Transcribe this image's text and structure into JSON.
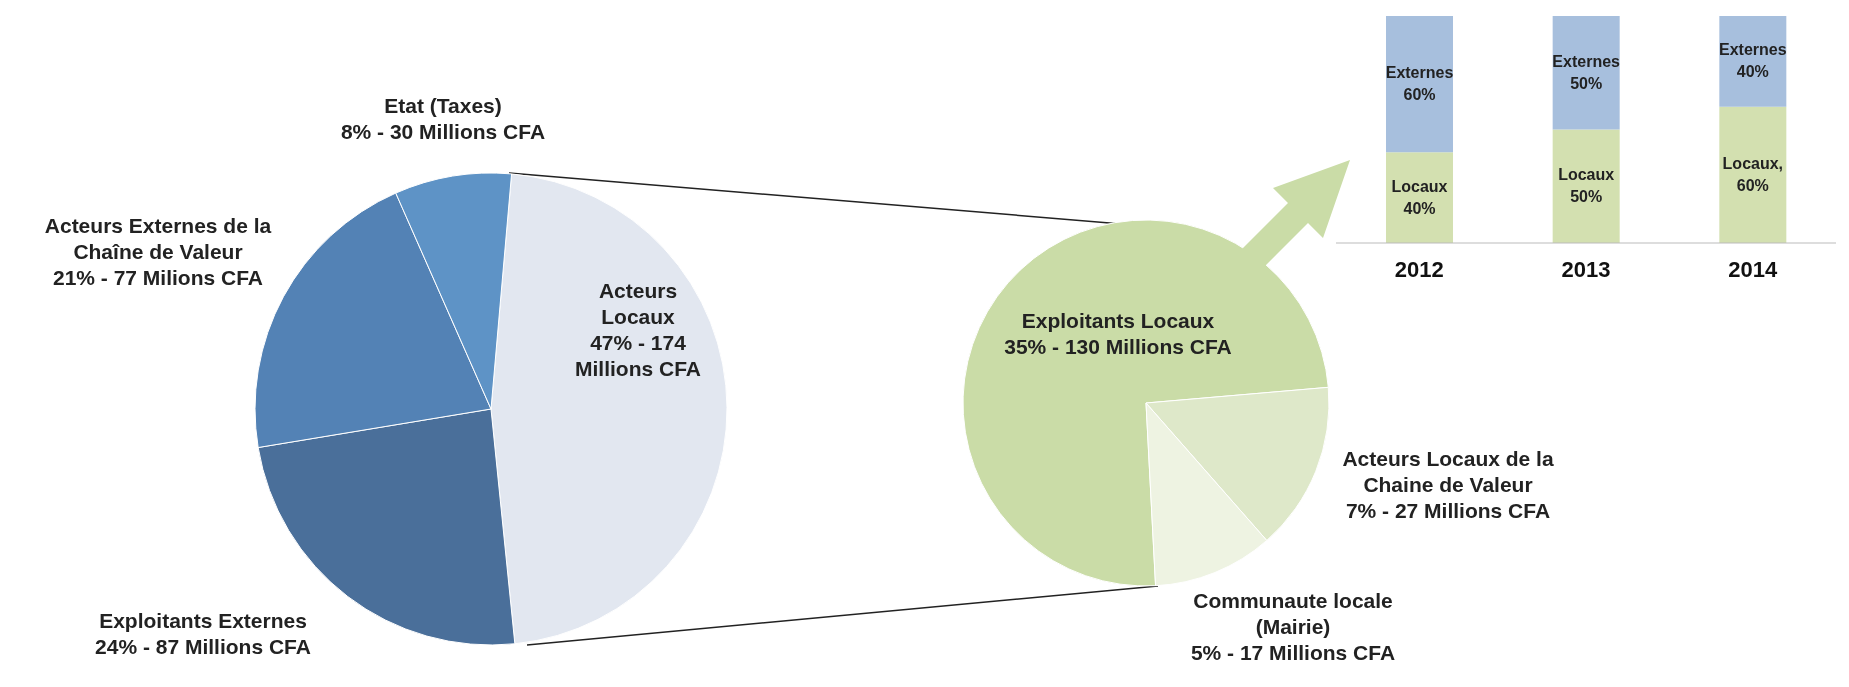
{
  "chart_data": [
    {
      "type": "pie",
      "categories": [
        "Acteurs Locaux",
        "Exploitants Externes",
        "Acteurs Externes de la Chaîne de Valeur",
        "Etat (Taxes)"
      ],
      "values": [
        47,
        24,
        21,
        8
      ],
      "colors": [
        "#e2e7f0",
        "#4a6f9a",
        "#5382b5",
        "#5e93c6"
      ],
      "value_labels": [
        "47% - 174 Millions CFA",
        "24% - 87 Millions CFA",
        "21% - 77 Milions CFA",
        "8% - 30 Millions CFA"
      ]
    },
    {
      "type": "pie",
      "categories": [
        "Exploitants Locaux",
        "Acteurs Locaux de la Chaine de Valeur",
        "Communaute locale (Mairie)"
      ],
      "values": [
        35,
        7,
        5
      ],
      "colors": [
        "#cadca7",
        "#dee8c9",
        "#eef3e2"
      ],
      "value_labels": [
        "35% - 130 Millions CFA",
        "7% - 27 Millions CFA",
        "5% - 17 Millions CFA"
      ]
    },
    {
      "type": "bar",
      "stacked": true,
      "categories": [
        "2012",
        "2013",
        "2014"
      ],
      "tick_labels": "x",
      "series": [
        {
          "color": "#d3e0b0",
          "values": [
            40,
            50,
            60
          ],
          "value_labels": [
            "Locaux 40%",
            "Locaux 50%",
            "Locaux, 60%"
          ]
        },
        {
          "color": "#a7bfdd",
          "values": [
            60,
            50,
            40
          ],
          "value_labels": [
            "Externes 60%",
            "Externes 50%",
            "Externes 40%"
          ]
        }
      ]
    }
  ]
}
